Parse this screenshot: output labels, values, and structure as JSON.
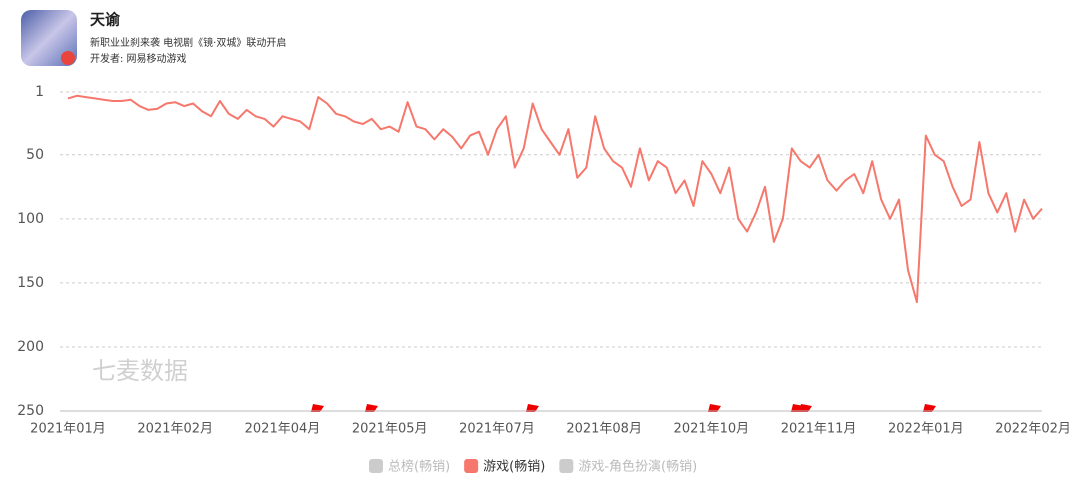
{
  "header": {
    "title": "天谕",
    "subtitle": "新职业业刹来袭 电视剧《镜·双城》联动开启",
    "developer": "开发者: 网易移动游戏"
  },
  "watermark": "七麦数据",
  "chart_data": {
    "type": "line",
    "categories": [
      "2021年01月",
      null,
      null,
      null,
      null,
      null,
      null,
      null,
      null,
      null,
      null,
      null,
      "2021年02月",
      null,
      null,
      null,
      null,
      null,
      null,
      null,
      null,
      null,
      null,
      null,
      "2021年04月",
      null,
      null,
      null,
      null,
      null,
      null,
      null,
      null,
      null,
      null,
      null,
      "2021年05月",
      null,
      null,
      null,
      null,
      null,
      null,
      null,
      null,
      null,
      null,
      null,
      "2021年07月",
      null,
      null,
      null,
      null,
      null,
      null,
      null,
      null,
      null,
      null,
      null,
      "2021年08月",
      null,
      null,
      null,
      null,
      null,
      null,
      null,
      null,
      null,
      null,
      null,
      "2021年10月",
      null,
      null,
      null,
      null,
      null,
      null,
      null,
      null,
      null,
      null,
      null,
      "2021年11月",
      null,
      null,
      null,
      null,
      null,
      null,
      null,
      null,
      null,
      null,
      null,
      "2022年01月",
      null,
      null,
      null,
      null,
      null,
      null,
      null,
      null,
      null,
      null,
      null,
      "2022年02月",
      null
    ],
    "series": [
      {
        "name": "游戏(畅销)",
        "color": "#f6776b",
        "values": [
          6,
          4,
          5,
          6,
          7,
          8,
          8,
          7,
          12,
          15,
          14,
          10,
          9,
          12,
          10,
          16,
          20,
          8,
          18,
          22,
          15,
          20,
          22,
          28,
          20,
          22,
          24,
          30,
          5,
          10,
          18,
          20,
          24,
          26,
          22,
          30,
          28,
          32,
          9,
          28,
          30,
          38,
          30,
          36,
          45,
          35,
          32,
          50,
          30,
          20,
          60,
          45,
          10,
          30,
          40,
          50,
          30,
          68,
          60,
          20,
          45,
          55,
          60,
          75,
          45,
          70,
          55,
          60,
          80,
          70,
          90,
          55,
          65,
          80,
          60,
          100,
          110,
          95,
          75,
          118,
          100,
          45,
          55,
          60,
          50,
          70,
          78,
          70,
          65,
          80,
          55,
          85,
          100,
          85,
          140,
          165,
          35,
          50,
          55,
          75,
          90,
          85,
          40,
          80,
          95,
          80,
          110,
          85,
          100,
          92
        ]
      }
    ],
    "inactive_series": [
      {
        "name": "总榜(畅销)",
        "color": "#cccccc"
      },
      {
        "name": "游戏-角色扮演(畅销)",
        "color": "#cccccc"
      }
    ],
    "ylim": [
      1,
      250
    ],
    "y_inverted": true,
    "yticks": [
      1,
      50,
      100,
      150,
      200,
      250
    ],
    "grid": true
  }
}
